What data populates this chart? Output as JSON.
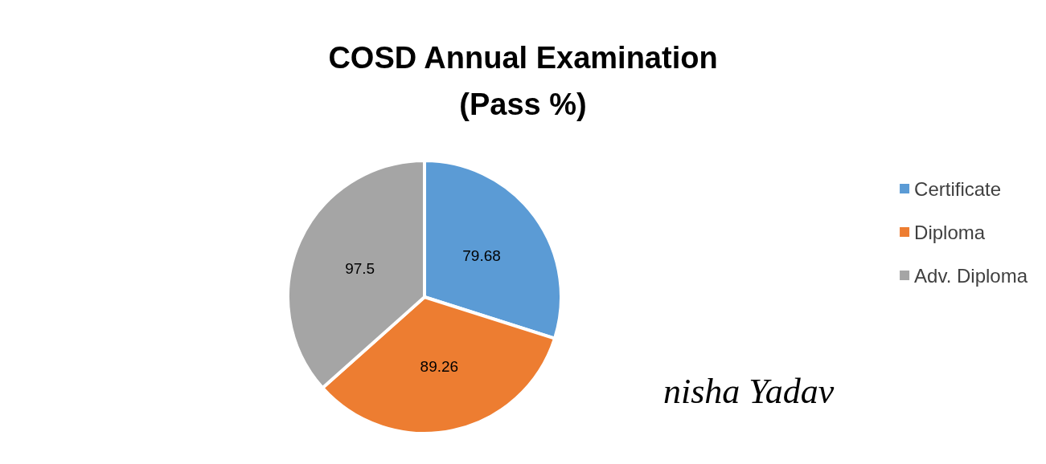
{
  "chart_data": {
    "type": "pie",
    "title": "COSD Annual Examination\n(Pass %)",
    "categories": [
      "Certificate",
      "Diploma",
      "Adv. Diploma"
    ],
    "values": [
      79.68,
      89.26,
      97.5
    ],
    "colors": [
      "#5b9bd5",
      "#ed7d31",
      "#a5a5a5"
    ],
    "data_labels": true,
    "legend": "right",
    "annotations": [
      "nisha Yadav"
    ]
  }
}
